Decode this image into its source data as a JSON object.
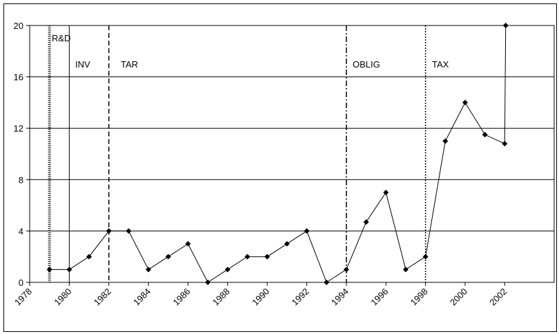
{
  "chart_data": {
    "type": "line",
    "x": [
      1979,
      1980,
      1981,
      1982,
      1983,
      1984,
      1985,
      1986,
      1987,
      1988,
      1989,
      1990,
      1991,
      1992,
      1993,
      1994,
      1995,
      1996,
      1997,
      1998,
      1999,
      2000,
      2001,
      2002,
      2002.05
    ],
    "series": [
      {
        "color": "#000000",
        "values": [
          1,
          1,
          2,
          4,
          4,
          1,
          2,
          3,
          0,
          1,
          2,
          2,
          3,
          4,
          0,
          1,
          4.7,
          7,
          1,
          2,
          11,
          14,
          11.5,
          10.8,
          20
        ]
      }
    ],
    "xlim": [
      1978,
      2004.5
    ],
    "xticks": [
      1978,
      1980,
      1982,
      1984,
      1986,
      1988,
      1990,
      1992,
      1994,
      1996,
      1998,
      2000,
      2002
    ],
    "ylim": [
      0,
      20
    ],
    "yticks": [
      0,
      4,
      8,
      12,
      16,
      20
    ],
    "grid": true,
    "events": [
      {
        "x": 1979,
        "label": "R&D"
      },
      {
        "x": 1980,
        "label": "INV"
      },
      {
        "x": 1982,
        "label": "TAR"
      },
      {
        "x": 1994,
        "label": "OBLIG"
      },
      {
        "x": 1998,
        "label": "TAX"
      }
    ]
  }
}
